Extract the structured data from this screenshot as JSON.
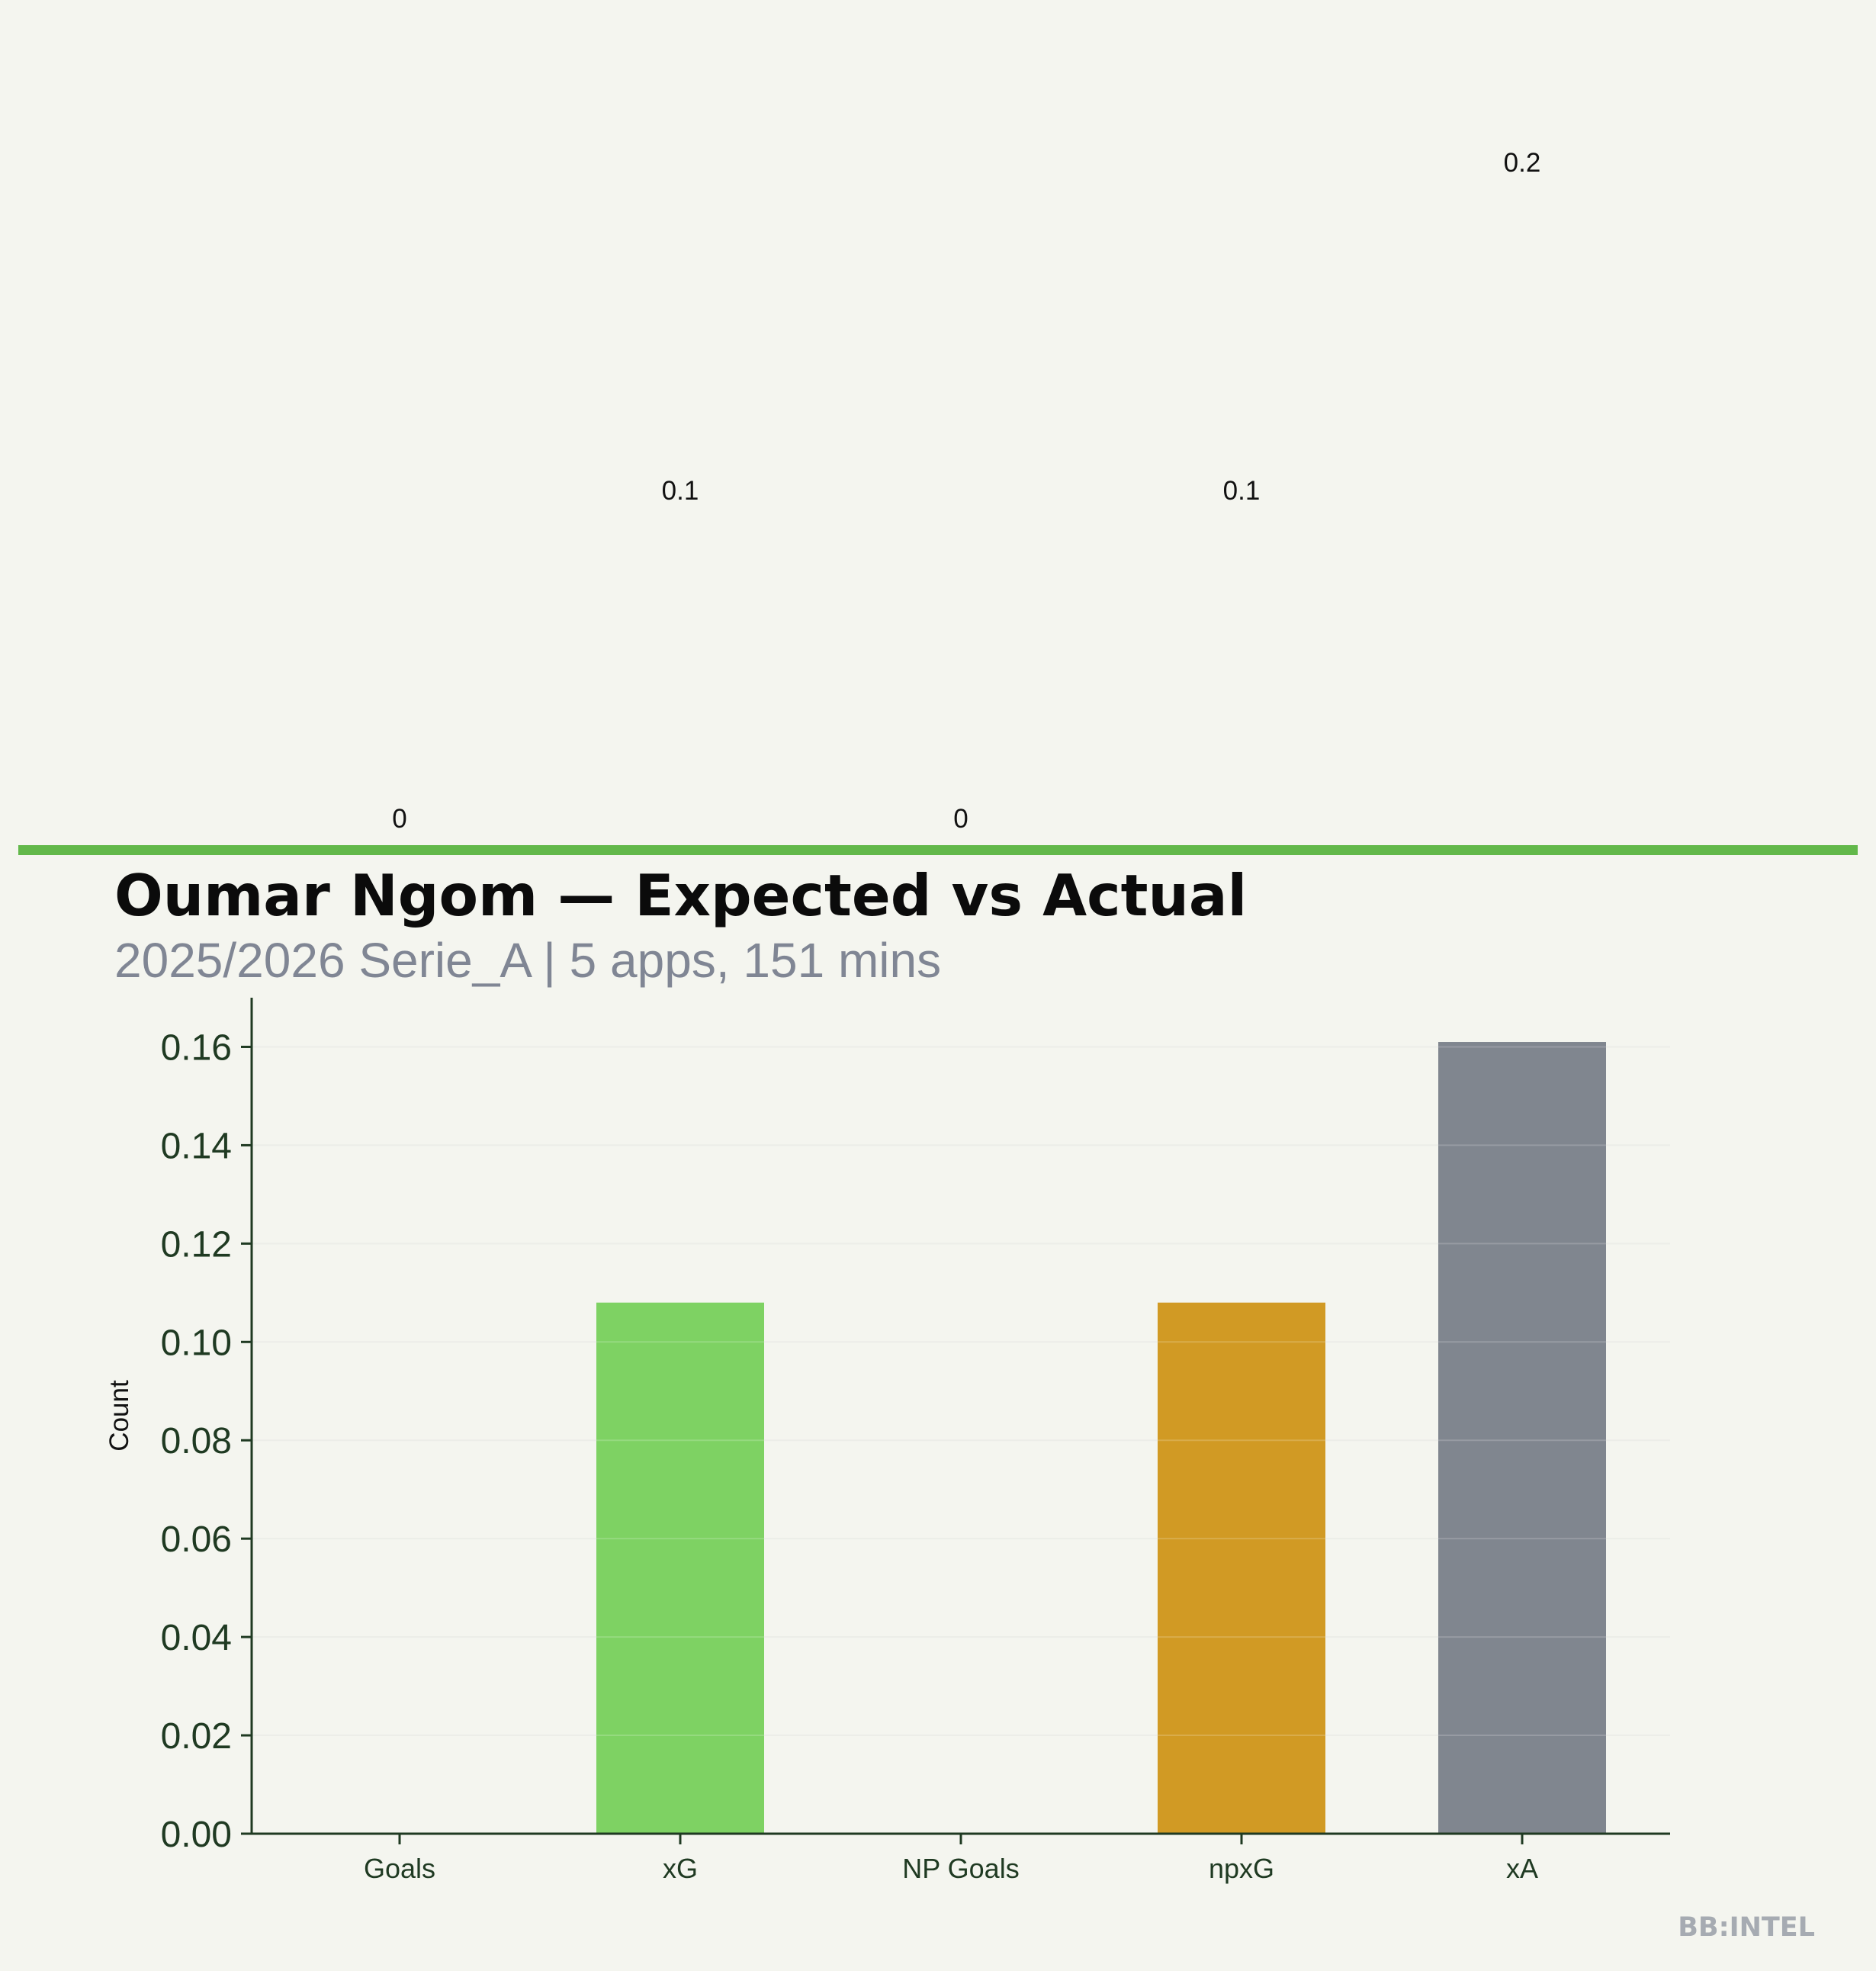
{
  "title": "Oumar Ngom — Expected vs Actual",
  "subtitle": "2025/2026 Serie_A | 5 apps, 151 mins",
  "watermark": "BB:INTEL",
  "colors": {
    "background": "#f4f5ef",
    "accent": "#62b84a",
    "axis": "#1f3a22",
    "goals": "#2e6b2e",
    "xG": "#7ed263",
    "np_goals": "#2e6b2e",
    "npxG": "#d19a24",
    "xA": "#80868f"
  },
  "chart_data": {
    "type": "bar",
    "categories": [
      "Goals",
      "xG",
      "NP Goals",
      "npxG",
      "xA"
    ],
    "values": [
      0,
      0.108,
      0,
      0.108,
      0.161
    ],
    "data_labels": [
      "0",
      "0.1",
      "0",
      "0.1",
      "0.2"
    ],
    "ylabel": "Count",
    "xlabel": "",
    "ylim": [
      0,
      0.17
    ],
    "yticks": [
      "0.00",
      "0.02",
      "0.04",
      "0.06",
      "0.08",
      "0.10",
      "0.12",
      "0.14",
      "0.16"
    ],
    "grid": true
  }
}
